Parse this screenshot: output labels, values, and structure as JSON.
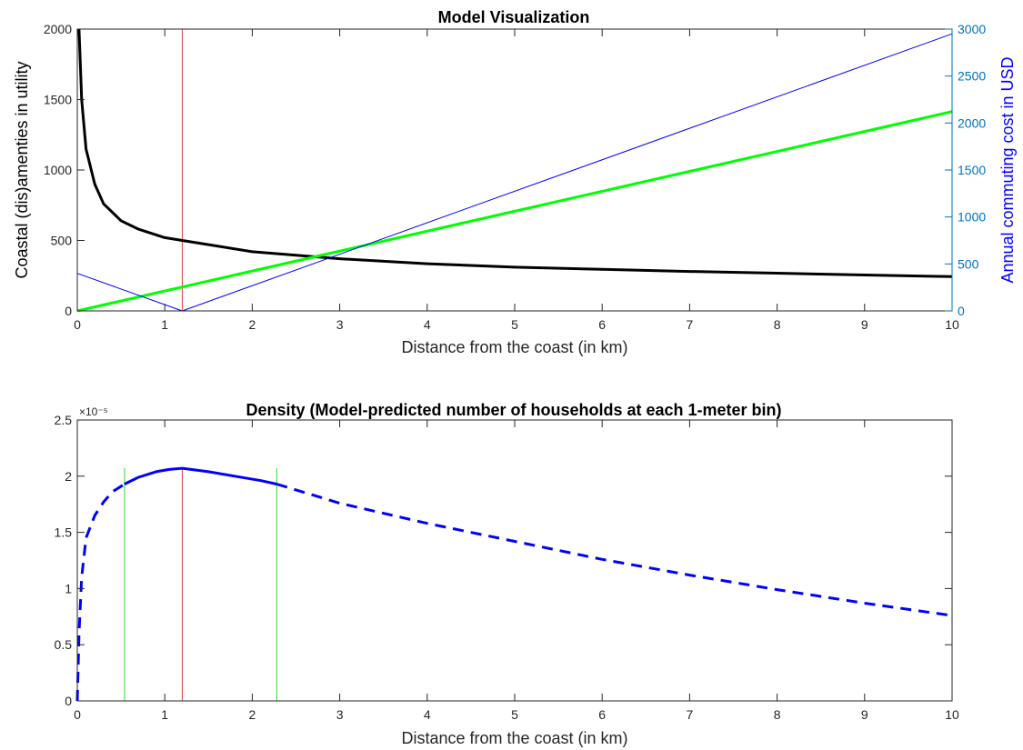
{
  "chart_data": [
    {
      "type": "line",
      "title": "Model Visualization",
      "xlabel": "Distance from the coast (in km)",
      "ylabel": "Coastal (dis)amenties in utility",
      "ylabel_right": "Annual commuting cost in USD",
      "xlim": [
        0,
        10
      ],
      "ylim": [
        0,
        2000
      ],
      "ylim_right": [
        0,
        3000
      ],
      "x_ticks": [
        "0",
        "1",
        "2",
        "3",
        "4",
        "5",
        "6",
        "7",
        "8",
        "9",
        "10"
      ],
      "y_ticks": [
        "0",
        "500",
        "1000",
        "1500",
        "2000"
      ],
      "y_ticks_right": [
        "0",
        "500",
        "1000",
        "1500",
        "2000",
        "2500",
        "3000"
      ],
      "grid": false,
      "series": [
        {
          "color": "#000000",
          "axis": "left",
          "style": "solid-thick",
          "x": [
            0.02,
            0.05,
            0.1,
            0.2,
            0.3,
            0.5,
            0.7,
            1.0,
            1.2,
            1.5,
            2,
            2.5,
            3,
            4,
            5,
            6,
            7,
            8,
            9,
            10
          ],
          "y": [
            2000,
            1500,
            1150,
            900,
            760,
            640,
            580,
            520,
            500,
            470,
            420,
            395,
            370,
            335,
            310,
            295,
            280,
            268,
            255,
            243
          ]
        },
        {
          "color": "#00ff00",
          "axis": "left",
          "style": "solid-thick",
          "x": [
            0,
            10
          ],
          "y": [
            0,
            1415
          ]
        },
        {
          "color": "#0000ff",
          "axis": "right",
          "style": "solid-thin",
          "x": [
            0,
            1.2,
            10
          ],
          "y": [
            400,
            0,
            2950
          ]
        }
      ],
      "vertical_lines": [
        {
          "x": 1.2,
          "color": "#e83c3c"
        }
      ]
    },
    {
      "type": "line",
      "title": "Density (Model-predicted number of households at each 1-meter bin)",
      "xlabel": "Distance from the coast (in km)",
      "y_exponent": "×10⁻⁵",
      "xlim": [
        0,
        10
      ],
      "ylim": [
        0,
        2.5
      ],
      "x_ticks": [
        "0",
        "1",
        "2",
        "3",
        "4",
        "5",
        "6",
        "7",
        "8",
        "9",
        "10"
      ],
      "y_ticks": [
        "0",
        "0.5",
        "1",
        "1.5",
        "2",
        "2.5"
      ],
      "grid": false,
      "series": [
        {
          "color": "#0000ff",
          "style": "dash",
          "x": [
            0,
            0.02,
            0.05,
            0.1,
            0.2,
            0.3,
            0.4,
            0.54
          ],
          "y": [
            0,
            0.6,
            1.1,
            1.45,
            1.65,
            1.77,
            1.86,
            1.93
          ]
        },
        {
          "color": "#0000ff",
          "style": "solid",
          "x": [
            0.54,
            0.7,
            0.9,
            1.05,
            1.2,
            1.5,
            1.8,
            2.1,
            2.28
          ],
          "y": [
            1.93,
            1.99,
            2.04,
            2.06,
            2.07,
            2.04,
            2.0,
            1.96,
            1.93
          ]
        },
        {
          "color": "#0000ff",
          "style": "dash",
          "x": [
            2.28,
            3,
            4,
            5,
            6,
            7,
            8,
            9,
            10
          ],
          "y": [
            1.93,
            1.76,
            1.58,
            1.42,
            1.26,
            1.12,
            0.99,
            0.87,
            0.76
          ]
        }
      ],
      "vertical_lines": [
        {
          "x": 0.54,
          "y_top": 2.07,
          "color": "#2bd42b"
        },
        {
          "x": 1.2,
          "y_top": 2.07,
          "color": "#e83c3c"
        },
        {
          "x": 2.28,
          "y_top": 2.07,
          "color": "#2bd42b"
        }
      ]
    }
  ]
}
